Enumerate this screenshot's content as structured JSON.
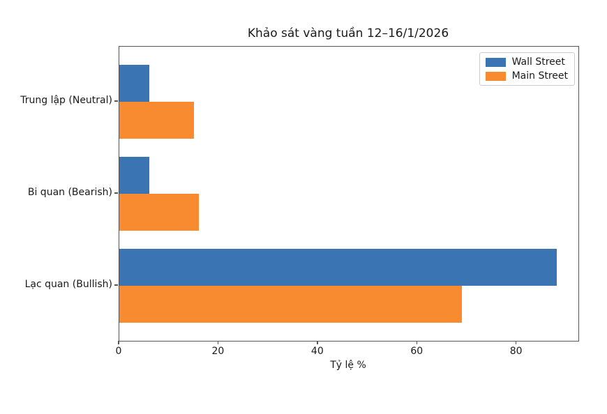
{
  "chart_data": {
    "type": "bar",
    "orientation": "horizontal",
    "title": "Khảo sát vàng tuần 12–16/1/2026",
    "xlabel": "Tỷ lệ %",
    "ylabel": "",
    "categories": [
      "Trung lập (Neutral)",
      "Bi quan (Bearish)",
      "Lạc quan (Bullish)"
    ],
    "series": [
      {
        "name": "Wall Street",
        "color": "#3a74b2",
        "values": [
          6,
          6,
          88
        ]
      },
      {
        "name": "Main Street",
        "color": "#f88b30",
        "values": [
          15,
          16,
          69
        ]
      }
    ],
    "xlim": [
      0,
      92.4
    ],
    "xticks": [
      0,
      20,
      40,
      60,
      80
    ],
    "bar_height_units": 0.4,
    "legend_position": "upper right",
    "grid": false,
    "spine_color": "#555555",
    "text_color": "#1a1a1a",
    "background_color": "#ffffff"
  }
}
